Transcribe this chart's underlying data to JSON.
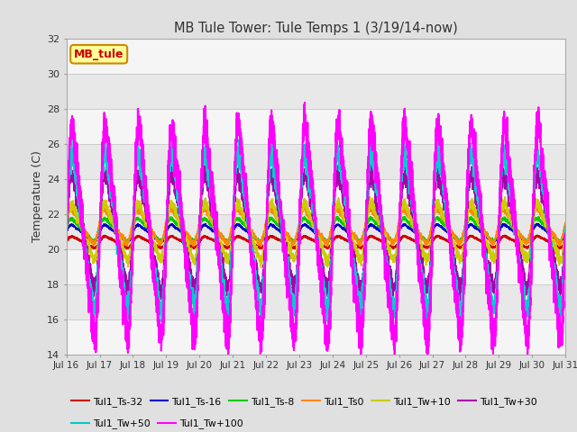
{
  "title": "MB Tule Tower: Tule Temps 1 (3/19/14-now)",
  "ylabel": "Temperature (C)",
  "ylim": [
    14,
    32
  ],
  "yticks": [
    14,
    16,
    18,
    20,
    22,
    24,
    26,
    28,
    30,
    32
  ],
  "xtick_labels": [
    "Jul 16",
    "Jul 17",
    "Jul 18",
    "Jul 19",
    "Jul 20",
    "Jul 21",
    "Jul 22",
    "Jul 23",
    "Jul 24",
    "Jul 25",
    "Jul 26",
    "Jul 27",
    "Jul 28",
    "Jul 29",
    "Jul 30",
    "Jul 31"
  ],
  "n_days": 15,
  "series_order": [
    "Tul1_Ts-32",
    "Tul1_Ts-16",
    "Tul1_Ts-8",
    "Tul1_Ts0",
    "Tul1_Tw+10",
    "Tul1_Tw+30",
    "Tul1_Tw+50",
    "Tul1_Tw+100"
  ],
  "series": {
    "Tul1_Ts-32": {
      "color": "#cc0000",
      "lw": 1.5,
      "amp": 0.4,
      "base": 20.4,
      "phase": 0.0
    },
    "Tul1_Ts-16": {
      "color": "#0000cc",
      "lw": 1.2,
      "amp": 0.6,
      "base": 20.9,
      "phase": 0.05
    },
    "Tul1_Ts-8": {
      "color": "#00cc00",
      "lw": 1.2,
      "amp": 0.8,
      "base": 21.1,
      "phase": 0.1
    },
    "Tul1_Ts0": {
      "color": "#ff8800",
      "lw": 1.2,
      "amp": 1.2,
      "base": 21.3,
      "phase": 0.15
    },
    "Tul1_Tw+10": {
      "color": "#cccc00",
      "lw": 1.2,
      "amp": 2.0,
      "base": 21.0,
      "phase": 0.0
    },
    "Tul1_Tw+30": {
      "color": "#aa00aa",
      "lw": 1.2,
      "amp": 4.0,
      "base": 21.0,
      "phase": 0.0
    },
    "Tul1_Tw+50": {
      "color": "#00cccc",
      "lw": 1.2,
      "amp": 5.5,
      "base": 21.0,
      "phase": 0.0
    },
    "Tul1_Tw+100": {
      "color": "#ff00ff",
      "lw": 1.5,
      "amp": 7.5,
      "base": 21.0,
      "phase": -0.05
    }
  },
  "bg_color": "#e0e0e0",
  "plot_bg_light": "#f5f5f5",
  "plot_bg_dark": "#e8e8e8",
  "annotation": {
    "text": "MB_tule",
    "facecolor": "#ffff99",
    "edgecolor": "#cc8800",
    "textcolor": "#cc0000"
  },
  "legend_entries": [
    [
      "Tul1_Ts-32",
      "#cc0000"
    ],
    [
      "Tul1_Ts-16",
      "#0000cc"
    ],
    [
      "Tul1_Ts-8",
      "#00cc00"
    ],
    [
      "Tul1_Ts0",
      "#ff8800"
    ],
    [
      "Tul1_Tw+10",
      "#cccc00"
    ],
    [
      "Tul1_Tw+30",
      "#aa00aa"
    ],
    [
      "Tul1_Tw+50",
      "#00cccc"
    ],
    [
      "Tul1_Tw+100",
      "#ff00ff"
    ]
  ]
}
